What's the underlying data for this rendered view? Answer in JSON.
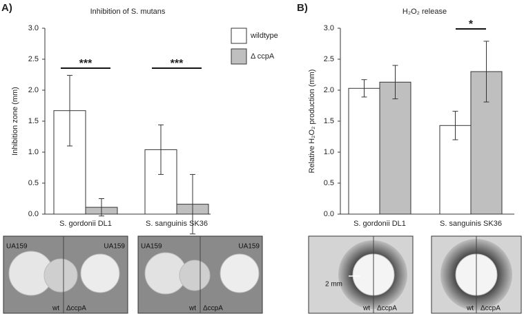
{
  "chart_data": [
    {
      "type": "bar",
      "panel": "A)",
      "title": "Inhibition of S. mutans",
      "y_label": "Inhibition zone (mm)",
      "categories": [
        "S. gordonii DL1",
        "S. sanguinis SK36"
      ],
      "series": [
        {
          "name": "wildtype",
          "color": "#ffffff",
          "values": [
            1.67,
            1.04
          ],
          "errors": [
            0.57,
            0.4
          ]
        },
        {
          "name": "Δ ccpA",
          "color": "#bfbfbf",
          "values": [
            0.11,
            0.16
          ],
          "errors": [
            0.14,
            0.48
          ]
        }
      ],
      "ylim": [
        0,
        3
      ],
      "yticks": [
        {
          "value": 0,
          "label": "0.0"
        },
        0.5,
        {
          "value": 1,
          "label": "1.0"
        },
        1.5,
        {
          "value": 2,
          "label": "2.0"
        },
        2.5,
        {
          "value": 3,
          "label": "3.0"
        }
      ],
      "significance": [
        {
          "category": 0,
          "label": "***"
        },
        {
          "category": 1,
          "label": "***"
        }
      ],
      "legend": "top-right"
    },
    {
      "type": "bar",
      "panel": "B)",
      "title": "H₂O₂ release",
      "y_label": "Relative H₂O₂ production (mm)",
      "categories": [
        "S. gordonii DL1",
        "S. sanguinis SK36"
      ],
      "series": [
        {
          "color": "#ffffff",
          "values": [
            2.03,
            1.43
          ],
          "errors": [
            0.14,
            0.23
          ]
        },
        {
          "color": "#bfbfbf",
          "values": [
            2.13,
            2.3
          ],
          "errors": [
            0.27,
            0.49
          ]
        }
      ],
      "ylim": [
        0,
        3
      ],
      "yticks": [
        {
          "value": 0,
          "label": "0.0"
        },
        0.5,
        {
          "value": 1,
          "label": "1.0"
        },
        1.5,
        {
          "value": 2,
          "label": "2.0"
        },
        2.5,
        {
          "value": 3,
          "label": "3.0"
        }
      ],
      "significance": [
        {
          "category": 1,
          "label": "*"
        }
      ]
    }
  ],
  "photos": [
    {
      "labels": [
        "UA159",
        "UA159",
        "wt",
        "ΔccpA"
      ]
    },
    {
      "labels": [
        "UA159",
        "UA159",
        "wt",
        "ΔccpA"
      ]
    },
    {
      "labels": [
        "2 mm",
        "wt",
        "ΔccpA"
      ]
    },
    {
      "labels": [
        "wt",
        "ΔccpA"
      ]
    }
  ]
}
